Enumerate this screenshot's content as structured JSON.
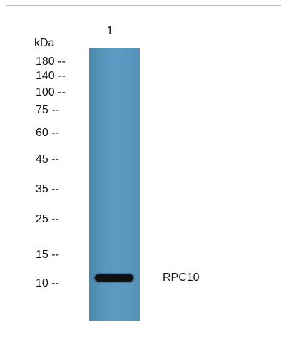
{
  "blot": {
    "lane_number": "1",
    "unit": "kDa",
    "markers": [
      "180 --",
      "140 --",
      "100 --",
      "75 --",
      "60 --",
      "45 --",
      "35 --",
      "25 --",
      "15 --",
      "10 --"
    ],
    "band_label": "RPC10"
  },
  "colors": {
    "lane": "#5898bf",
    "band": "#111111",
    "frame": "#b9b9b9"
  }
}
